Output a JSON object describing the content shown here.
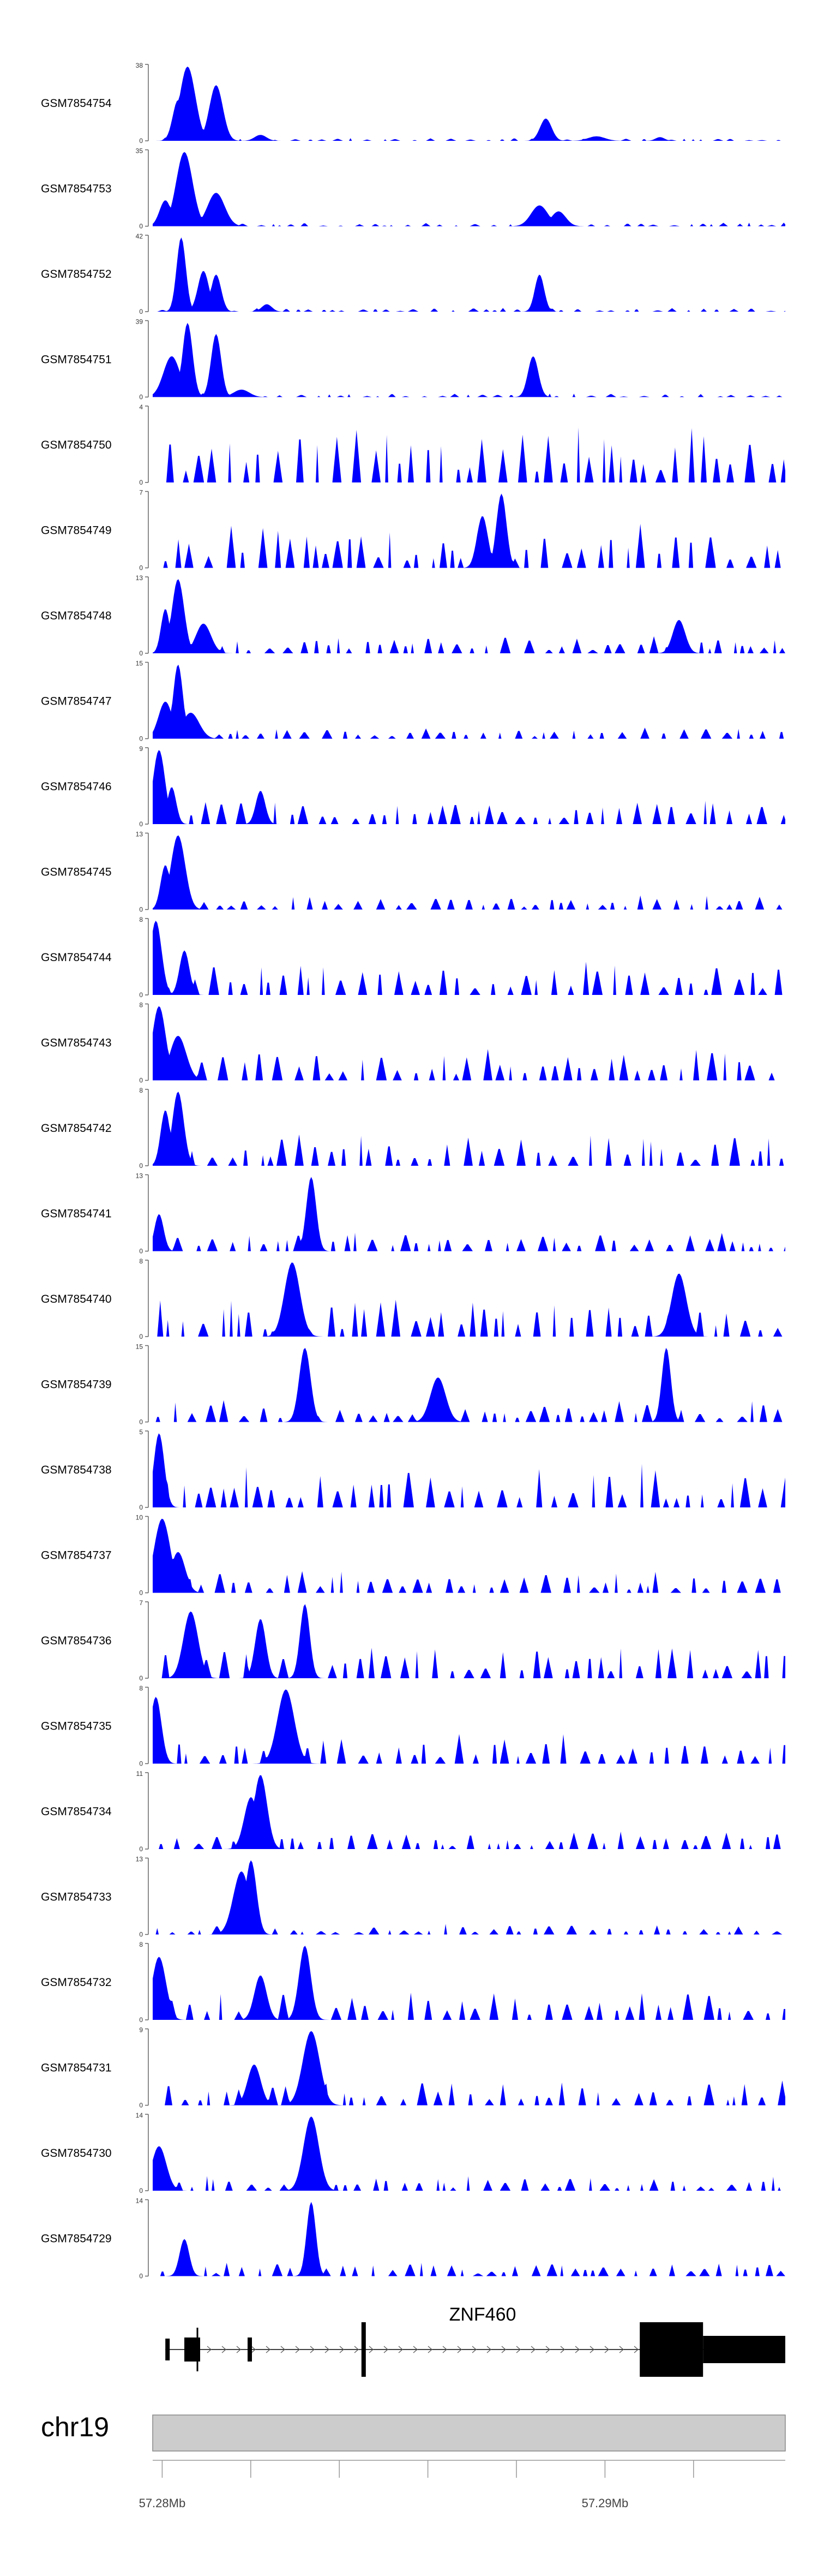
{
  "chart_data": {
    "type": "area",
    "description_title": "",
    "fill_color": "#0000ff",
    "tracks": [
      {
        "name": "GSM7854754",
        "ymax": 38,
        "ylim": [
          0,
          38
        ],
        "peaks": [
          [
            0.04,
            0.55
          ],
          [
            0.055,
            1.0
          ],
          [
            0.1,
            0.75
          ],
          [
            0.17,
            0.08
          ],
          [
            0.62,
            0.3
          ],
          [
            0.7,
            0.06
          ],
          [
            0.8,
            0.05
          ]
        ],
        "noise": 0.04,
        "seed": 1
      },
      {
        "name": "GSM7854753",
        "ymax": 35,
        "ylim": [
          0,
          35
        ],
        "peaks": [
          [
            0.02,
            0.35
          ],
          [
            0.05,
            1.0
          ],
          [
            0.1,
            0.45
          ],
          [
            0.61,
            0.28
          ],
          [
            0.64,
            0.2
          ]
        ],
        "noise": 0.05,
        "seed": 2
      },
      {
        "name": "GSM7854752",
        "ymax": 42,
        "ylim": [
          0,
          42
        ],
        "peaks": [
          [
            0.045,
            1.0
          ],
          [
            0.08,
            0.55
          ],
          [
            0.1,
            0.5
          ],
          [
            0.18,
            0.1
          ],
          [
            0.61,
            0.5
          ]
        ],
        "noise": 0.05,
        "seed": 3
      },
      {
        "name": "GSM7854751",
        "ymax": 39,
        "ylim": [
          0,
          39
        ],
        "peaks": [
          [
            0.03,
            0.55
          ],
          [
            0.055,
            1.0
          ],
          [
            0.1,
            0.85
          ],
          [
            0.14,
            0.1
          ],
          [
            0.6,
            0.55
          ]
        ],
        "noise": 0.05,
        "seed": 4
      },
      {
        "name": "GSM7854750",
        "ymax": 4,
        "ylim": [
          0,
          4
        ],
        "peaks": [],
        "noise": 0.75,
        "seed": 5
      },
      {
        "name": "GSM7854749",
        "ymax": 7,
        "ylim": [
          0,
          7
        ],
        "peaks": [
          [
            0.55,
            1.0
          ],
          [
            0.52,
            0.7
          ]
        ],
        "noise": 0.6,
        "seed": 6
      },
      {
        "name": "GSM7854748",
        "ymax": 13,
        "ylim": [
          0,
          13
        ],
        "peaks": [
          [
            0.04,
            1.0
          ],
          [
            0.02,
            0.6
          ],
          [
            0.08,
            0.4
          ],
          [
            0.83,
            0.45
          ]
        ],
        "noise": 0.25,
        "seed": 7
      },
      {
        "name": "GSM7854747",
        "ymax": 15,
        "ylim": [
          0,
          15
        ],
        "peaks": [
          [
            0.04,
            1.0
          ],
          [
            0.02,
            0.5
          ],
          [
            0.06,
            0.35
          ]
        ],
        "noise": 0.15,
        "seed": 8
      },
      {
        "name": "GSM7854746",
        "ymax": 9,
        "ylim": [
          0,
          9
        ],
        "peaks": [
          [
            0.01,
            1.0
          ],
          [
            0.03,
            0.5
          ],
          [
            0.17,
            0.45
          ]
        ],
        "noise": 0.35,
        "seed": 9
      },
      {
        "name": "GSM7854745",
        "ymax": 13,
        "ylim": [
          0,
          13
        ],
        "peaks": [
          [
            0.04,
            1.0
          ],
          [
            0.02,
            0.6
          ]
        ],
        "noise": 0.2,
        "seed": 10
      },
      {
        "name": "GSM7854744",
        "ymax": 8,
        "ylim": [
          0,
          8
        ],
        "peaks": [
          [
            0.005,
            1.0
          ],
          [
            0.05,
            0.6
          ]
        ],
        "noise": 0.45,
        "seed": 11
      },
      {
        "name": "GSM7854743",
        "ymax": 8,
        "ylim": [
          0,
          8
        ],
        "peaks": [
          [
            0.01,
            1.0
          ],
          [
            0.04,
            0.6
          ]
        ],
        "noise": 0.45,
        "seed": 12
      },
      {
        "name": "GSM7854742",
        "ymax": 8,
        "ylim": [
          0,
          8
        ],
        "peaks": [
          [
            0.04,
            1.0
          ],
          [
            0.02,
            0.75
          ]
        ],
        "noise": 0.45,
        "seed": 13
      },
      {
        "name": "GSM7854741",
        "ymax": 13,
        "ylim": [
          0,
          13
        ],
        "peaks": [
          [
            0.25,
            1.0
          ],
          [
            0.01,
            0.5
          ]
        ],
        "noise": 0.25,
        "seed": 14
      },
      {
        "name": "GSM7854740",
        "ymax": 8,
        "ylim": [
          0,
          8
        ],
        "peaks": [
          [
            0.22,
            1.0
          ],
          [
            0.83,
            0.85
          ]
        ],
        "noise": 0.5,
        "seed": 15
      },
      {
        "name": "GSM7854739",
        "ymax": 15,
        "ylim": [
          0,
          15
        ],
        "peaks": [
          [
            0.24,
            1.0
          ],
          [
            0.81,
            1.0
          ],
          [
            0.45,
            0.6
          ]
        ],
        "noise": 0.3,
        "seed": 16
      },
      {
        "name": "GSM7854738",
        "ymax": 5,
        "ylim": [
          0,
          5
        ],
        "peaks": [
          [
            0.01,
            1.0
          ]
        ],
        "noise": 0.6,
        "seed": 17
      },
      {
        "name": "GSM7854737",
        "ymax": 10,
        "ylim": [
          0,
          10
        ],
        "peaks": [
          [
            0.015,
            1.0
          ],
          [
            0.04,
            0.55
          ]
        ],
        "noise": 0.3,
        "seed": 18
      },
      {
        "name": "GSM7854736",
        "ymax": 7,
        "ylim": [
          0,
          7
        ],
        "peaks": [
          [
            0.24,
            1.0
          ],
          [
            0.06,
            0.9
          ],
          [
            0.17,
            0.8
          ]
        ],
        "noise": 0.45,
        "seed": 19
      },
      {
        "name": "GSM7854735",
        "ymax": 8,
        "ylim": [
          0,
          8
        ],
        "peaks": [
          [
            0.21,
            1.0
          ],
          [
            0.005,
            0.9
          ]
        ],
        "noise": 0.4,
        "seed": 20
      },
      {
        "name": "GSM7854734",
        "ymax": 11,
        "ylim": [
          0,
          11
        ],
        "peaks": [
          [
            0.17,
            1.0
          ],
          [
            0.155,
            0.7
          ]
        ],
        "noise": 0.25,
        "seed": 21
      },
      {
        "name": "GSM7854733",
        "ymax": 13,
        "ylim": [
          0,
          13
        ],
        "peaks": [
          [
            0.155,
            1.0
          ],
          [
            0.14,
            0.85
          ]
        ],
        "noise": 0.15,
        "seed": 22
      },
      {
        "name": "GSM7854732",
        "ymax": 8,
        "ylim": [
          0,
          8
        ],
        "peaks": [
          [
            0.24,
            1.0
          ],
          [
            0.01,
            0.85
          ],
          [
            0.17,
            0.6
          ]
        ],
        "noise": 0.4,
        "seed": 23
      },
      {
        "name": "GSM7854731",
        "ymax": 9,
        "ylim": [
          0,
          9
        ],
        "peaks": [
          [
            0.25,
            1.0
          ],
          [
            0.16,
            0.55
          ]
        ],
        "noise": 0.35,
        "seed": 24
      },
      {
        "name": "GSM7854730",
        "ymax": 14,
        "ylim": [
          0,
          14
        ],
        "peaks": [
          [
            0.25,
            1.0
          ],
          [
            0.01,
            0.6
          ]
        ],
        "noise": 0.2,
        "seed": 25
      },
      {
        "name": "GSM7854729",
        "ymax": 14,
        "ylim": [
          0,
          14
        ],
        "peaks": [
          [
            0.25,
            1.0
          ],
          [
            0.05,
            0.5
          ]
        ],
        "noise": 0.2,
        "seed": 26
      }
    ],
    "gene": {
      "name": "ZNF460",
      "exons": [
        [
          0.02,
          0.025,
          "thin"
        ],
        [
          0.05,
          0.075,
          "mid"
        ],
        [
          0.15,
          0.155,
          "mid"
        ],
        [
          0.33,
          0.335,
          "thick"
        ],
        [
          0.77,
          0.87,
          "thick"
        ],
        [
          0.87,
          1.0,
          "mid"
        ]
      ]
    },
    "chromosome": {
      "name": "chr19",
      "tick_labels": [
        "57.28Mb",
        "57.29Mb"
      ],
      "label_positions": [
        0.015,
        0.715
      ],
      "minor_ticks": [
        0.015,
        0.155,
        0.295,
        0.435,
        0.575,
        0.715,
        0.855
      ]
    }
  }
}
